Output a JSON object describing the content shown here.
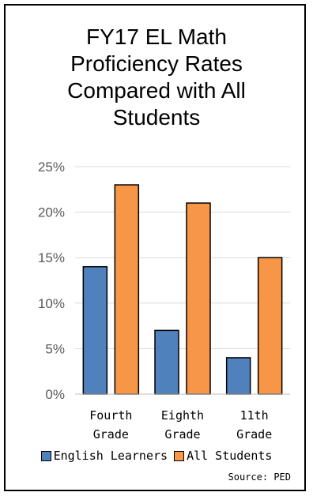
{
  "chart_data": {
    "type": "bar",
    "title_lines": [
      "FY17 EL Math",
      "Proficiency Rates",
      "Compared with All",
      "Students"
    ],
    "categories": [
      [
        "Fourth",
        "Grade"
      ],
      [
        "Eighth",
        "Grade"
      ],
      [
        "11th",
        "Grade"
      ]
    ],
    "series": [
      {
        "name": "English Learners",
        "values": [
          14,
          7,
          4
        ],
        "color": "#4f81bd"
      },
      {
        "name": "All Students",
        "values": [
          23,
          21,
          15
        ],
        "color": "#f79646"
      }
    ],
    "ylim": [
      0,
      25
    ],
    "yticks": [
      "0%",
      "5%",
      "10%",
      "15%",
      "20%",
      "25%"
    ],
    "grid": true,
    "legend_position": "bottom",
    "source": "Source: PED"
  }
}
